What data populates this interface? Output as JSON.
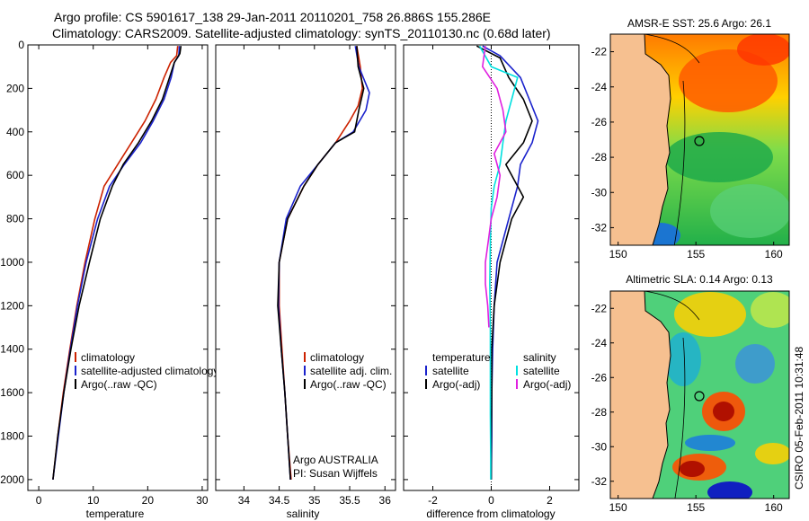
{
  "title": {
    "line1": "Argo profile: CS 5901617_138 29-Jan-2011 20110201_758 26.886S 155.286E",
    "line2": "Climatology: CARS2009. Satellite-adjusted climatology: synTS_20110130.nc (0.68d later)"
  },
  "colors": {
    "climatology": "#cc2200",
    "satellite": "#1a22cc",
    "argo": "#000000",
    "salinity_satellite": "#00e0e0",
    "salinity_argo": "#e020e0",
    "land": "#f6c090",
    "coast": "#000000"
  },
  "chart_data": [
    {
      "type": "line",
      "name": "temperature-panel",
      "xlabel": "temperature",
      "ylabel": "",
      "xlim": [
        -2,
        31
      ],
      "ylim": [
        2050,
        0
      ],
      "xticks": [
        "0",
        "10",
        "20",
        "30"
      ],
      "xtick_values": [
        0,
        10,
        20,
        30
      ],
      "yticks": [
        "0",
        "200",
        "400",
        "600",
        "800",
        "1000",
        "1200",
        "1400",
        "1600",
        "1800",
        "2000"
      ],
      "ytick_values": [
        0,
        200,
        400,
        600,
        800,
        1000,
        1200,
        1400,
        1600,
        1800,
        2000
      ],
      "legend": [
        "climatology",
        "satellite-adjusted climatology",
        "Argo(..raw -QC)"
      ],
      "series": [
        {
          "name": "climatology",
          "color_key": "climatology",
          "points": [
            [
              25.5,
              5
            ],
            [
              25.3,
              50
            ],
            [
              24.2,
              80
            ],
            [
              23,
              150
            ],
            [
              21.5,
              250
            ],
            [
              19.5,
              350
            ],
            [
              17,
              450
            ],
            [
              14.5,
              550
            ],
            [
              12,
              650
            ],
            [
              10.3,
              800
            ],
            [
              8.5,
              1000
            ],
            [
              7,
              1200
            ],
            [
              5.7,
              1400
            ],
            [
              4.5,
              1600
            ],
            [
              3.5,
              1800
            ],
            [
              2.6,
              2000
            ]
          ]
        },
        {
          "name": "satellite-adjusted climatology",
          "color_key": "satellite",
          "points": [
            [
              25.8,
              5
            ],
            [
              25.7,
              50
            ],
            [
              24.9,
              80
            ],
            [
              24.3,
              150
            ],
            [
              23,
              250
            ],
            [
              21,
              350
            ],
            [
              18.7,
              450
            ],
            [
              15.7,
              550
            ],
            [
              13,
              650
            ],
            [
              10.8,
              800
            ],
            [
              8.7,
              1000
            ],
            [
              7.1,
              1200
            ],
            [
              5.8,
              1400
            ],
            [
              4.6,
              1600
            ],
            [
              3.6,
              1800
            ],
            [
              2.6,
              2000
            ]
          ]
        },
        {
          "name": "Argo(..raw -QC)",
          "color_key": "argo",
          "points": [
            [
              26.1,
              5
            ],
            [
              25.9,
              40
            ],
            [
              24.9,
              80
            ],
            [
              24,
              150
            ],
            [
              22.7,
              250
            ],
            [
              20.7,
              350
            ],
            [
              18.3,
              450
            ],
            [
              15.5,
              550
            ],
            [
              13.5,
              650
            ],
            [
              11.3,
              800
            ],
            [
              9.3,
              1000
            ],
            [
              7.4,
              1200
            ],
            [
              5.9,
              1400
            ],
            [
              4.6,
              1600
            ],
            [
              3.5,
              1800
            ],
            [
              2.6,
              2000
            ]
          ]
        }
      ]
    },
    {
      "type": "line",
      "name": "salinity-panel",
      "xlabel": "salinity",
      "xlim": [
        33.6,
        36.15
      ],
      "ylim": [
        2050,
        0
      ],
      "xticks": [
        "34",
        "34.5",
        "35",
        "35.5",
        "36"
      ],
      "xtick_values": [
        34,
        34.5,
        35,
        35.5,
        36
      ],
      "legend": [
        "climatology",
        "satellite adj. clim.",
        "Argo(..raw -QC)"
      ],
      "annotation": [
        "Argo AUSTRALIA",
        "PI: Susan Wijffels"
      ],
      "series": [
        {
          "name": "climatology",
          "color_key": "climatology",
          "points": [
            [
              35.6,
              5
            ],
            [
              35.65,
              100
            ],
            [
              35.68,
              200
            ],
            [
              35.62,
              280
            ],
            [
              35.5,
              350
            ],
            [
              35.3,
              450
            ],
            [
              35.05,
              550
            ],
            [
              34.85,
              650
            ],
            [
              34.62,
              800
            ],
            [
              34.5,
              1000
            ],
            [
              34.5,
              1200
            ],
            [
              34.54,
              1400
            ],
            [
              34.58,
              1600
            ],
            [
              34.62,
              1800
            ],
            [
              34.67,
              2000
            ]
          ]
        },
        {
          "name": "satellite adj. clim.",
          "color_key": "satellite",
          "points": [
            [
              35.58,
              5
            ],
            [
              35.63,
              100
            ],
            [
              35.78,
              220
            ],
            [
              35.73,
              300
            ],
            [
              35.55,
              400
            ],
            [
              35.3,
              450
            ],
            [
              35.05,
              550
            ],
            [
              34.8,
              650
            ],
            [
              34.6,
              800
            ],
            [
              34.5,
              1000
            ],
            [
              34.49,
              1200
            ],
            [
              34.53,
              1400
            ],
            [
              34.58,
              1600
            ],
            [
              34.62,
              1800
            ],
            [
              34.66,
              2000
            ]
          ]
        },
        {
          "name": "Argo(..raw -QC)",
          "color_key": "argo",
          "points": [
            [
              35.6,
              5
            ],
            [
              35.62,
              100
            ],
            [
              35.7,
              200
            ],
            [
              35.63,
              300
            ],
            [
              35.57,
              400
            ],
            [
              35.3,
              450
            ],
            [
              35.05,
              550
            ],
            [
              34.85,
              650
            ],
            [
              34.62,
              800
            ],
            [
              34.5,
              1000
            ],
            [
              34.48,
              1200
            ],
            [
              34.53,
              1400
            ],
            [
              34.58,
              1600
            ],
            [
              34.62,
              1800
            ],
            [
              34.66,
              2000
            ]
          ]
        }
      ]
    },
    {
      "type": "line",
      "name": "difference-panel",
      "xlabel": "difference from climatology",
      "xlim": [
        -3,
        3
      ],
      "ylim": [
        2050,
        0
      ],
      "xticks": [
        "-2",
        "0",
        "2"
      ],
      "xtick_values": [
        -2,
        0,
        2
      ],
      "legend": {
        "temperature_header": "temperature",
        "salinity_header": "salinity",
        "temperature_items": [
          "satellite",
          "Argo(-adj)"
        ],
        "salinity_items": [
          "satellite",
          "Argo(-adj)"
        ]
      },
      "series": [
        {
          "name": "temperature satellite",
          "color_key": "satellite",
          "points": [
            [
              -0.3,
              5
            ],
            [
              0.3,
              50
            ],
            [
              1,
              150
            ],
            [
              1.3,
              250
            ],
            [
              1.6,
              350
            ],
            [
              1.4,
              450
            ],
            [
              1,
              550
            ],
            [
              0.9,
              650
            ],
            [
              0.6,
              800
            ],
            [
              0.4,
              900
            ],
            [
              0.2,
              1000
            ],
            [
              0.1,
              1200
            ],
            [
              0.05,
              1400
            ],
            [
              0.02,
              1600
            ],
            [
              0.02,
              1800
            ],
            [
              0,
              2000
            ]
          ]
        },
        {
          "name": "temperature Argo(-adj)",
          "color_key": "argo",
          "points": [
            [
              -0.5,
              5
            ],
            [
              0.3,
              60
            ],
            [
              0.6,
              150
            ],
            [
              1.1,
              250
            ],
            [
              1.4,
              350
            ],
            [
              1.1,
              450
            ],
            [
              0.5,
              550
            ],
            [
              1.1,
              700
            ],
            [
              0.7,
              800
            ],
            [
              0.5,
              900
            ],
            [
              0.3,
              1000
            ],
            [
              0.1,
              1200
            ],
            [
              0.02,
              1400
            ],
            [
              0.02,
              1600
            ],
            [
              0,
              1800
            ],
            [
              0,
              2000
            ]
          ]
        },
        {
          "name": "salinity satellite",
          "color_key": "salinity_satellite",
          "points": [
            [
              -0.4,
              5
            ],
            [
              0,
              100
            ],
            [
              0.9,
              150
            ],
            [
              0.7,
              250
            ],
            [
              0.5,
              350
            ],
            [
              0.4,
              450
            ],
            [
              0.3,
              550
            ],
            [
              0.1,
              650
            ],
            [
              0,
              750
            ],
            [
              -0.03,
              900
            ],
            [
              -0.05,
              1100
            ],
            [
              -0.03,
              1300
            ],
            [
              -0.03,
              1500
            ],
            [
              -0.03,
              1700
            ],
            [
              -0.02,
              1900
            ],
            [
              -0.02,
              2000
            ]
          ]
        },
        {
          "name": "salinity Argo(-adj)",
          "color_key": "salinity_argo",
          "points": [
            [
              -0.2,
              5
            ],
            [
              -0.3,
              100
            ],
            [
              0.2,
              200
            ],
            [
              0.4,
              300
            ],
            [
              0.5,
              400
            ],
            [
              0.1,
              500
            ],
            [
              0.3,
              600
            ],
            [
              0.2,
              700
            ],
            [
              0,
              800
            ],
            [
              -0.1,
              900
            ],
            [
              -0.2,
              1000
            ],
            [
              -0.2,
              1100
            ],
            [
              -0.12,
              1200
            ],
            [
              -0.08,
              1300
            ]
          ]
        }
      ]
    },
    {
      "type": "heatmap",
      "name": "sst-map",
      "title": "AMSR-E SST: 25.6  Argo: 26.1",
      "xlim": [
        149.5,
        161
      ],
      "ylim": [
        -33,
        -21
      ],
      "xticks": [
        "150",
        "155",
        "160"
      ],
      "xtick_values": [
        150,
        155,
        160
      ],
      "yticks": [
        "-22",
        "-24",
        "-26",
        "-28",
        "-30",
        "-32"
      ],
      "ytick_values": [
        -22,
        -24,
        -26,
        -28,
        -30,
        -32
      ],
      "argo_position": {
        "lon": 155.286,
        "lat": -26.886
      }
    },
    {
      "type": "heatmap",
      "name": "sla-map",
      "title": "Altimetric SLA: 0.14  Argo: 0.13",
      "xlim": [
        149.5,
        161
      ],
      "ylim": [
        -33,
        -21
      ],
      "xticks": [
        "150",
        "155",
        "160"
      ],
      "xtick_values": [
        150,
        155,
        160
      ],
      "yticks": [
        "-22",
        "-24",
        "-26",
        "-28",
        "-30",
        "-32"
      ],
      "ytick_values": [
        -22,
        -24,
        -26,
        -28,
        -30,
        -32
      ],
      "argo_position": {
        "lon": 155.286,
        "lat": -26.886
      }
    }
  ],
  "stamp": "CSIRO 05-Feb-2011 10:31:48"
}
